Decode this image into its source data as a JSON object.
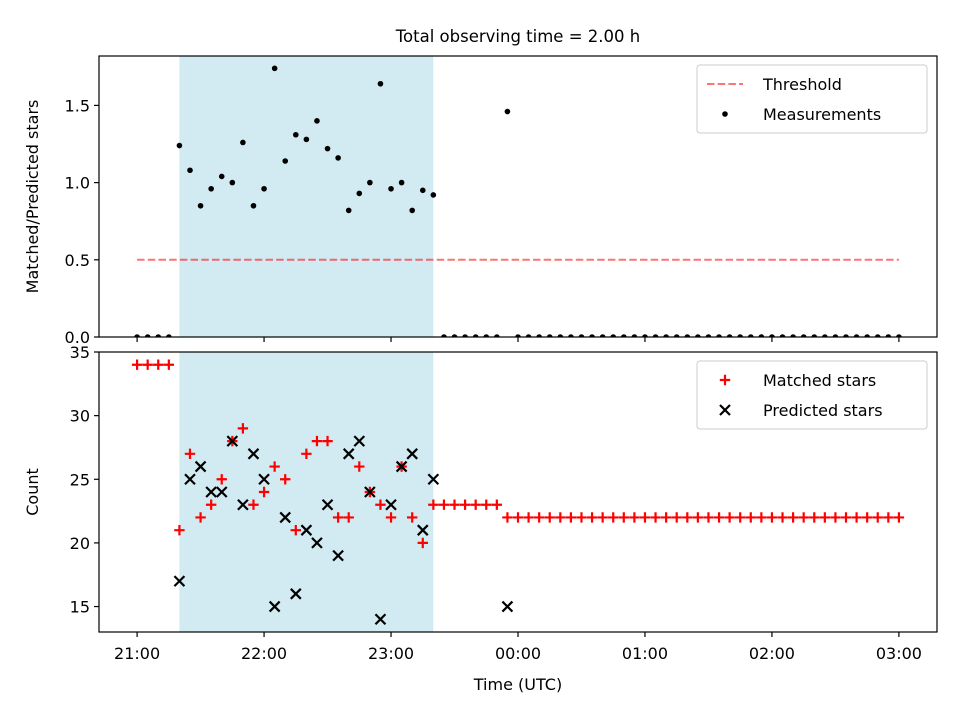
{
  "figure_title": "Total observing time = 2.00 h",
  "colors": {
    "shade": "#add8e6",
    "threshold": "#ff0000",
    "measurement": "#000000",
    "matched": "#ff0000",
    "predicted": "#000000"
  },
  "chart_data": [
    {
      "type": "scatter",
      "title": "Total observing time = 2.00 h",
      "xlabel": "",
      "ylabel": "Matched/Predicted stars",
      "xlim": [
        "20:42",
        "03:18"
      ],
      "ylim": [
        0,
        1.82
      ],
      "yticks": [
        0.0,
        0.5,
        1.0,
        1.5
      ],
      "ytick_labels": [
        "0.0",
        "0.5",
        "1.0",
        "1.5"
      ],
      "xticks": [
        "21:00",
        "22:00",
        "23:00",
        "00:00",
        "01:00",
        "02:00",
        "03:00"
      ],
      "shaded_interval": [
        "21:20",
        "23:20"
      ],
      "legend": {
        "position": "upper right",
        "entries": [
          "Threshold",
          "Measurements"
        ]
      },
      "series": [
        {
          "name": "Threshold",
          "kind": "dashed-line",
          "x": [
            "21:00",
            "03:00"
          ],
          "y": [
            0.5,
            0.5
          ]
        },
        {
          "name": "Measurements",
          "kind": "dots",
          "x": [
            "21:00",
            "21:05",
            "21:10",
            "21:15",
            "21:20",
            "21:25",
            "21:30",
            "21:35",
            "21:40",
            "21:45",
            "21:50",
            "21:55",
            "22:00",
            "22:05",
            "22:10",
            "22:15",
            "22:20",
            "22:25",
            "22:30",
            "22:35",
            "22:40",
            "22:45",
            "22:50",
            "22:55",
            "23:00",
            "23:05",
            "23:10",
            "23:15",
            "23:20",
            "23:25",
            "23:30",
            "23:35",
            "23:40",
            "23:45",
            "23:50",
            "23:55",
            "00:00",
            "00:05",
            "00:10",
            "00:15",
            "00:20",
            "00:25",
            "00:30",
            "00:35",
            "00:40",
            "00:45",
            "00:50",
            "00:55",
            "01:00",
            "01:05",
            "01:10",
            "01:15",
            "01:20",
            "01:25",
            "01:30",
            "01:35",
            "01:40",
            "01:45",
            "01:50",
            "01:55",
            "02:00",
            "02:05",
            "02:10",
            "02:15",
            "02:20",
            "02:25",
            "02:30",
            "02:35",
            "02:40",
            "02:45",
            "02:50",
            "02:55",
            "03:00"
          ],
          "y": [
            0,
            0,
            0,
            0,
            1.24,
            1.08,
            0.85,
            0.96,
            1.04,
            1.0,
            1.26,
            0.85,
            0.96,
            1.74,
            1.14,
            1.31,
            1.28,
            1.4,
            1.22,
            1.16,
            0.82,
            0.93,
            1.0,
            1.64,
            0.96,
            1.0,
            0.82,
            0.95,
            0.92,
            0,
            0,
            0,
            0,
            0,
            0,
            1.46,
            0,
            0,
            0,
            0,
            0,
            0,
            0,
            0,
            0,
            0,
            0,
            0,
            0,
            0,
            0,
            0,
            0,
            0,
            0,
            0,
            0,
            0,
            0,
            0,
            0,
            0,
            0,
            0,
            0,
            0,
            0,
            0,
            0,
            0,
            0,
            0,
            0
          ]
        }
      ]
    },
    {
      "type": "scatter",
      "title": "",
      "xlabel": "Time (UTC)",
      "ylabel": "Count",
      "xlim": [
        "20:42",
        "03:18"
      ],
      "ylim": [
        13,
        35
      ],
      "yticks": [
        15,
        20,
        25,
        30,
        35
      ],
      "ytick_labels": [
        "15",
        "20",
        "25",
        "30",
        "35"
      ],
      "xticks": [
        "21:00",
        "22:00",
        "23:00",
        "00:00",
        "01:00",
        "02:00",
        "03:00"
      ],
      "shaded_interval": [
        "21:20",
        "23:20"
      ],
      "legend": {
        "position": "upper right",
        "entries": [
          "Matched stars",
          "Predicted stars"
        ]
      },
      "series": [
        {
          "name": "Matched stars",
          "kind": "plus",
          "x": [
            "21:00",
            "21:05",
            "21:10",
            "21:15",
            "21:20",
            "21:25",
            "21:30",
            "21:35",
            "21:40",
            "21:45",
            "21:50",
            "21:55",
            "22:00",
            "22:05",
            "22:10",
            "22:15",
            "22:20",
            "22:25",
            "22:30",
            "22:35",
            "22:40",
            "22:45",
            "22:50",
            "22:55",
            "23:00",
            "23:05",
            "23:10",
            "23:15",
            "23:20",
            "23:25",
            "23:30",
            "23:35",
            "23:40",
            "23:45",
            "23:50",
            "23:55",
            "00:00",
            "00:05",
            "00:10",
            "00:15",
            "00:20",
            "00:25",
            "00:30",
            "00:35",
            "00:40",
            "00:45",
            "00:50",
            "00:55",
            "01:00",
            "01:05",
            "01:10",
            "01:15",
            "01:20",
            "01:25",
            "01:30",
            "01:35",
            "01:40",
            "01:45",
            "01:50",
            "01:55",
            "02:00",
            "02:05",
            "02:10",
            "02:15",
            "02:20",
            "02:25",
            "02:30",
            "02:35",
            "02:40",
            "02:45",
            "02:50",
            "02:55",
            "03:00"
          ],
          "y": [
            34,
            34,
            34,
            34,
            21,
            27,
            22,
            23,
            25,
            28,
            29,
            23,
            24,
            26,
            25,
            21,
            27,
            28,
            28,
            22,
            22,
            26,
            24,
            23,
            22,
            26,
            22,
            20,
            23,
            23,
            23,
            23,
            23,
            23,
            23,
            22,
            22,
            22,
            22,
            22,
            22,
            22,
            22,
            22,
            22,
            22,
            22,
            22,
            22,
            22,
            22,
            22,
            22,
            22,
            22,
            22,
            22,
            22,
            22,
            22,
            22,
            22,
            22,
            22,
            22,
            22,
            22,
            22,
            22,
            22,
            22,
            22,
            22
          ]
        },
        {
          "name": "Predicted stars",
          "kind": "cross",
          "x": [
            "21:20",
            "21:25",
            "21:30",
            "21:35",
            "21:40",
            "21:45",
            "21:50",
            "21:55",
            "22:00",
            "22:05",
            "22:10",
            "22:15",
            "22:20",
            "22:25",
            "22:30",
            "22:35",
            "22:40",
            "22:45",
            "22:50",
            "22:55",
            "23:00",
            "23:05",
            "23:10",
            "23:15",
            "23:20",
            "23:55"
          ],
          "y": [
            17,
            25,
            26,
            24,
            24,
            28,
            23,
            27,
            25,
            15,
            22,
            16,
            21,
            20,
            23,
            19,
            27,
            28,
            24,
            14,
            23,
            26,
            27,
            21,
            25,
            15
          ]
        }
      ]
    }
  ]
}
